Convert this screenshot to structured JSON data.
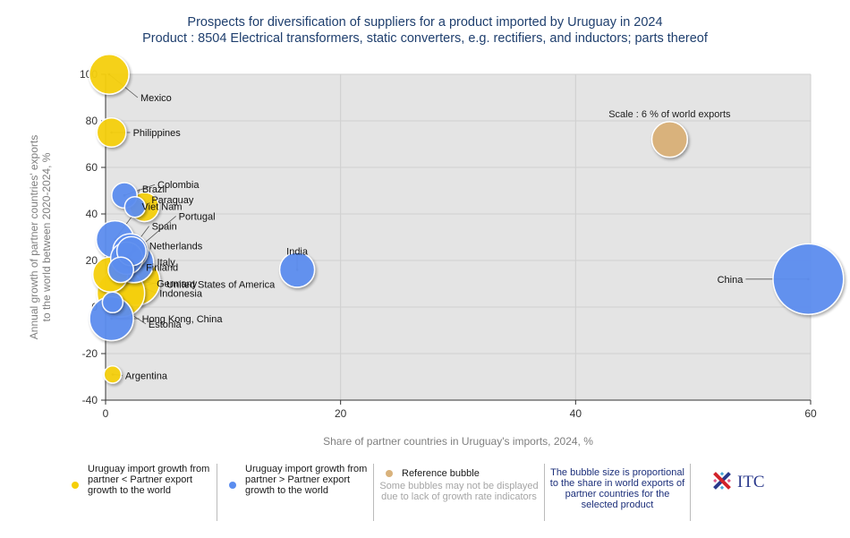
{
  "header": {
    "title": "Prospects for diversification of suppliers for a product imported by Uruguay in 2024",
    "subtitle": "Product : 8504 Electrical transformers, static converters, e.g. rectifiers, and inductors; parts thereof"
  },
  "chart_data": {
    "type": "scatter",
    "xlabel": "Share of partner countries in Uruguay's imports, 2024, %",
    "ylabel_line1": "Annual growth of partner countries' exports",
    "ylabel_line2": "to the world between 2020-2024, %",
    "xlim": [
      0,
      60
    ],
    "ylim": [
      -40,
      100
    ],
    "xticks": [
      0,
      20,
      40,
      60
    ],
    "yticks": [
      100,
      80,
      60,
      40,
      20,
      0,
      -20,
      -40
    ],
    "grid": true,
    "colors": {
      "yellow": "#f5cf0a",
      "blue": "#5b8def",
      "reference": "#d9b27c",
      "plot_bg": "#e4e4e4"
    },
    "points": [
      {
        "name": "China",
        "x": 59.8,
        "y": 12,
        "size": 28,
        "color": "blue"
      },
      {
        "name": "Mexico",
        "x": 0.3,
        "y": 100,
        "size": 7,
        "color": "yellow"
      },
      {
        "name": "Philippines",
        "x": 0.5,
        "y": 75,
        "size": 3,
        "color": "yellow"
      },
      {
        "name": "Colombia",
        "x": 1.6,
        "y": 48,
        "size": 2,
        "color": "blue"
      },
      {
        "name": "Brazil",
        "x": 2.5,
        "y": 43,
        "size": 1,
        "color": "blue"
      },
      {
        "name": "Paraguay",
        "x": 3.3,
        "y": 43,
        "size": 3,
        "color": "yellow"
      },
      {
        "name": "Viet Nam",
        "x": 0.8,
        "y": 29,
        "size": 6,
        "color": "blue"
      },
      {
        "name": "Portugal",
        "x": 1.8,
        "y": 21,
        "size": 4,
        "color": "blue"
      },
      {
        "name": "Spain",
        "x": 2.1,
        "y": 24,
        "size": 5,
        "color": "blue"
      },
      {
        "name": "Netherlands",
        "x": 2.2,
        "y": 24,
        "size": 3,
        "color": "blue"
      },
      {
        "name": "Italy",
        "x": 2.4,
        "y": 19,
        "size": 7,
        "color": "blue"
      },
      {
        "name": "Finland",
        "x": 1.3,
        "y": 16,
        "size": 2,
        "color": "blue"
      },
      {
        "name": "India",
        "x": 16.3,
        "y": 16,
        "size": 5,
        "color": "blue"
      },
      {
        "name": "United States of America",
        "x": 2.6,
        "y": 11,
        "size": 11,
        "color": "yellow"
      },
      {
        "name": "Germany",
        "x": 1.3,
        "y": 6,
        "size": 11,
        "color": "yellow"
      },
      {
        "name": "Indonesia",
        "x": 0.4,
        "y": 14,
        "size": 5,
        "color": "yellow"
      },
      {
        "name": "Hong Kong, China",
        "x": 0.5,
        "y": -5,
        "size": 9,
        "color": "blue"
      },
      {
        "name": "Estonia",
        "x": 0.6,
        "y": 2,
        "size": 1,
        "color": "blue"
      },
      {
        "name": "Argentina",
        "x": 0.6,
        "y": -29,
        "size": 0.5,
        "color": "yellow"
      }
    ],
    "reference_bubble": {
      "label": "Scale : 6 % of world exports",
      "x": 48,
      "y": 72,
      "size": 6
    }
  },
  "legend": {
    "yellow_text": "Uruguay import growth from partner < Partner export growth to the world",
    "blue_text": "Uruguay import growth from partner > Partner export growth to the world",
    "reference_title": "Reference bubble",
    "reference_note": "Some bubbles may not be displayed due to lack of growth rate indicators",
    "size_note": "The bubble size is proportional to the share in world exports of partner countries for the selected product",
    "logo_text": "ITC"
  }
}
